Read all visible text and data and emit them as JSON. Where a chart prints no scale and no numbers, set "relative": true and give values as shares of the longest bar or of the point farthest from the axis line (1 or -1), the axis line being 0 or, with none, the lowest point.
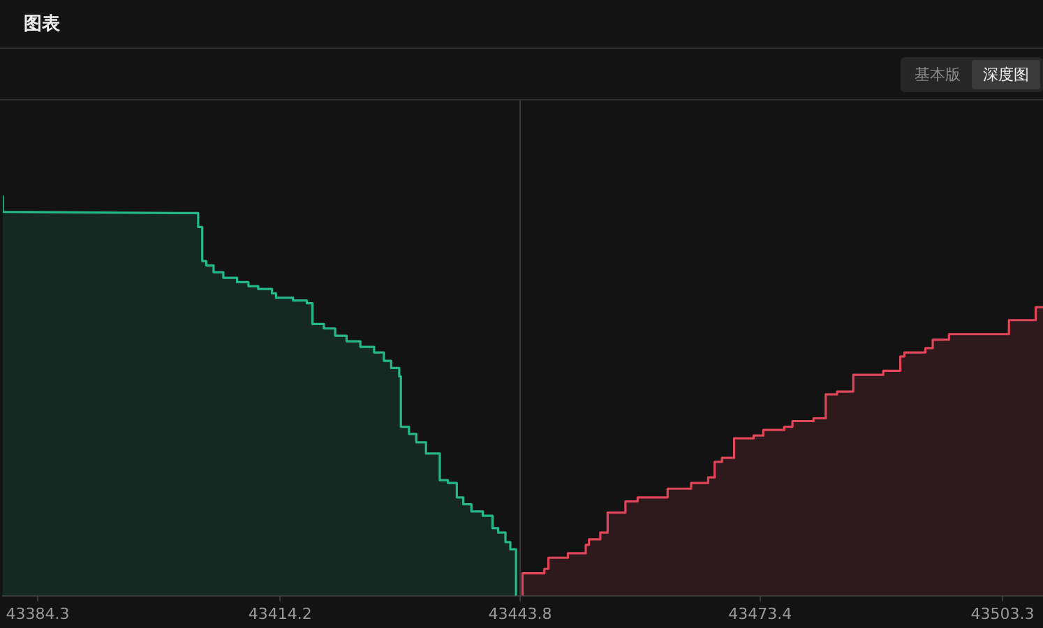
{
  "chart_data": {
    "type": "area",
    "title": "图表",
    "annotations": [
      "基本版",
      "深度图"
    ],
    "relative": true,
    "legend": false,
    "grid": false,
    "xlim": [
      43380.0,
      43508.3
    ],
    "xticks": [
      43384.3,
      43414.2,
      43443.8,
      43473.4,
      43503.3
    ],
    "ref_lines": [
      {
        "axis": "x",
        "value": 43443.8,
        "color": "#3a3a3a"
      }
    ],
    "series": [
      {
        "color": "#26b88a",
        "x": [
          43380.0,
          43380.0,
          43402.0,
          43404.1,
          43404.1,
          43404.6,
          43404.6,
          43405.1,
          43405.1,
          43406.0,
          43406.0,
          43407.2,
          43407.2,
          43408.9,
          43408.9,
          43410.3,
          43410.3,
          43411.5,
          43411.5,
          43413.2,
          43413.2,
          43413.7,
          43413.7,
          43415.8,
          43415.8,
          43417.5,
          43417.5,
          43418.2,
          43418.2,
          43419.6,
          43419.6,
          43421.0,
          43421.0,
          43422.4,
          43422.4,
          43424.1,
          43424.1,
          43425.8,
          43425.8,
          43427.0,
          43427.0,
          43427.9,
          43427.9,
          43428.9,
          43428.9,
          43429.1,
          43429.1,
          43430.1,
          43430.1,
          43431.0,
          43431.0,
          43432.2,
          43432.2,
          43433.9,
          43433.9,
          43434.9,
          43434.9,
          43436.0,
          43436.0,
          43436.8,
          43436.8,
          43437.8,
          43437.8,
          43439.2,
          43439.2,
          43440.4,
          43440.4,
          43441.1,
          43441.1,
          43442.0,
          43442.0,
          43442.6,
          43442.6,
          43443.3,
          43443.3
        ],
        "values": [
          1.0,
          0.961,
          0.958,
          0.958,
          0.923,
          0.923,
          0.838,
          0.838,
          0.827,
          0.827,
          0.81,
          0.81,
          0.796,
          0.796,
          0.785,
          0.785,
          0.775,
          0.775,
          0.768,
          0.768,
          0.757,
          0.757,
          0.746,
          0.746,
          0.739,
          0.739,
          0.732,
          0.732,
          0.68,
          0.68,
          0.669,
          0.669,
          0.651,
          0.651,
          0.637,
          0.637,
          0.623,
          0.623,
          0.609,
          0.609,
          0.588,
          0.588,
          0.57,
          0.57,
          0.549,
          0.549,
          0.423,
          0.423,
          0.405,
          0.405,
          0.384,
          0.384,
          0.356,
          0.356,
          0.289,
          0.289,
          0.282,
          0.282,
          0.246,
          0.246,
          0.229,
          0.229,
          0.211,
          0.211,
          0.2,
          0.2,
          0.169,
          0.169,
          0.158,
          0.158,
          0.134,
          0.134,
          0.116,
          0.116,
          0
        ]
      },
      {
        "color": "#e04558",
        "x": [
          43444.1,
          43444.1,
          43446.8,
          43446.8,
          43447.3,
          43447.3,
          43449.7,
          43449.7,
          43451.9,
          43451.9,
          43452.3,
          43452.3,
          43453.7,
          43453.7,
          43454.6,
          43454.6,
          43456.8,
          43456.8,
          43458.3,
          43458.3,
          43462.0,
          43462.0,
          43464.9,
          43464.9,
          43467.0,
          43467.0,
          43467.8,
          43467.8,
          43468.7,
          43468.7,
          43470.2,
          43470.2,
          43472.6,
          43472.6,
          43473.8,
          43473.8,
          43476.4,
          43476.4,
          43477.4,
          43477.4,
          43480.0,
          43480.0,
          43481.5,
          43481.5,
          43482.9,
          43482.9,
          43484.9,
          43484.9,
          43488.6,
          43488.6,
          43490.7,
          43490.7,
          43491.2,
          43491.2,
          43493.8,
          43493.8,
          43494.7,
          43494.7,
          43496.7,
          43496.7,
          43504.1,
          43504.1,
          43507.4,
          43507.4,
          43508.3
        ],
        "values": [
          0,
          0.056,
          0.056,
          0.067,
          0.067,
          0.095,
          0.095,
          0.106,
          0.106,
          0.127,
          0.127,
          0.141,
          0.141,
          0.158,
          0.158,
          0.208,
          0.208,
          0.236,
          0.236,
          0.246,
          0.246,
          0.268,
          0.268,
          0.282,
          0.282,
          0.296,
          0.296,
          0.335,
          0.335,
          0.345,
          0.345,
          0.394,
          0.394,
          0.401,
          0.401,
          0.415,
          0.415,
          0.423,
          0.423,
          0.437,
          0.437,
          0.444,
          0.444,
          0.504,
          0.504,
          0.511,
          0.511,
          0.553,
          0.553,
          0.563,
          0.563,
          0.599,
          0.599,
          0.609,
          0.609,
          0.62,
          0.62,
          0.641,
          0.641,
          0.655,
          0.655,
          0.69,
          0.69,
          0.722,
          0.722
        ]
      }
    ]
  }
}
